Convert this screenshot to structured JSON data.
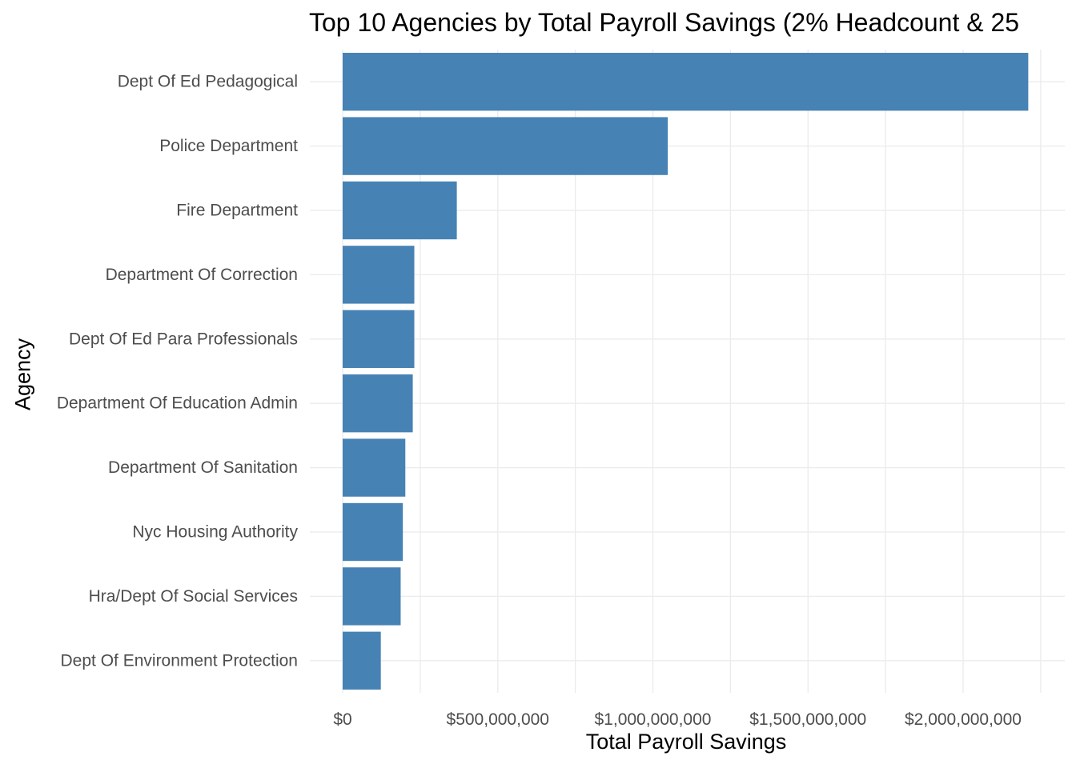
{
  "chart_data": {
    "type": "bar",
    "orientation": "horizontal",
    "title": "Top 10 Agencies by Total Payroll Savings (2% Headcount & 25",
    "xlabel": "Total Payroll Savings",
    "ylabel": "Agency",
    "categories": [
      "Dept Of Ed Pedagogical",
      "Police Department",
      "Fire Department",
      "Department Of Correction",
      "Dept Of Ed Para Professionals",
      "Department Of Education Admin",
      "Department Of Sanitation",
      "Nyc Housing Authority",
      "Hra/Dept Of Social Services",
      "Dept Of Environment Protection"
    ],
    "values": [
      2210000000,
      1048000000,
      368000000,
      231000000,
      231000000,
      226000000,
      202000000,
      194000000,
      187000000,
      123000000
    ],
    "xlim": [
      0,
      2240000000
    ],
    "x_ticks": [
      0,
      500000000,
      1000000000,
      1500000000,
      2000000000
    ],
    "x_tick_labels": [
      "$0",
      "$500,000,000",
      "$1,000,000,000",
      "$1,500,000,000",
      "$2,000,000,000"
    ],
    "bar_color": "#4682B4",
    "grid_color": "#ebebeb",
    "grid": true,
    "legend": "none"
  }
}
